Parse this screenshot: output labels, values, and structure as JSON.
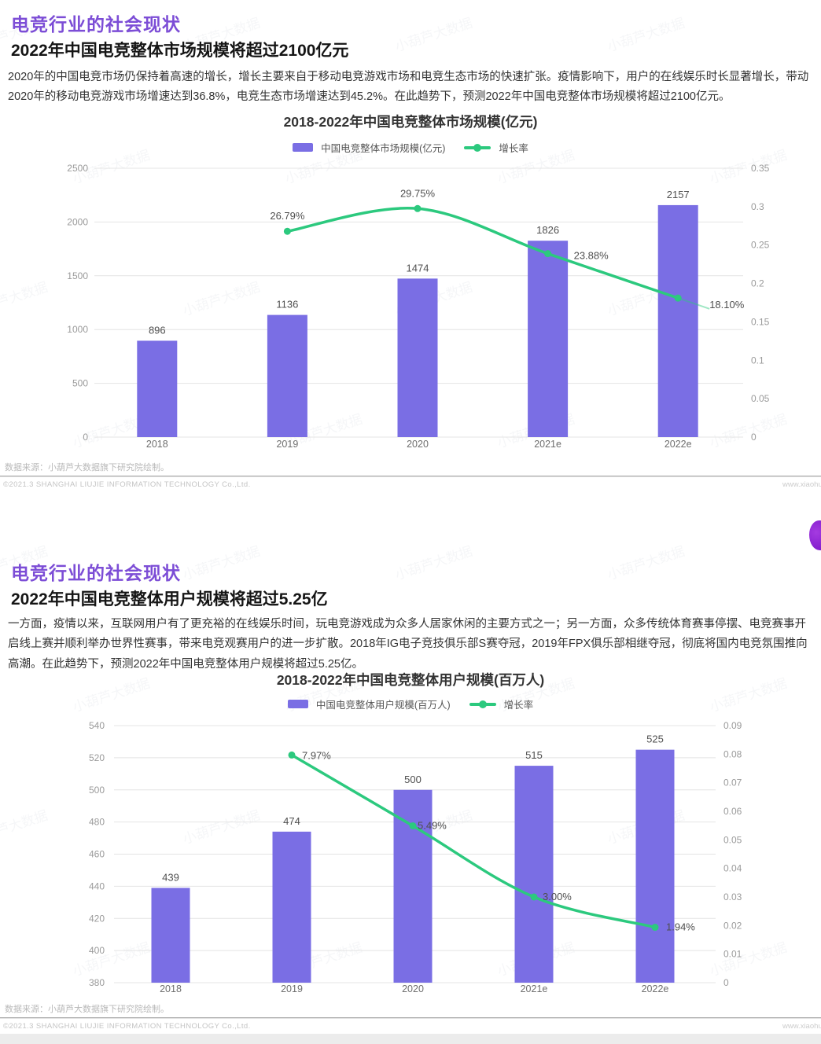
{
  "page": {
    "watermark_text": "小葫芦大数据"
  },
  "colors": {
    "heading_purple": "#7c4dd6",
    "bar": "#7a6ee4",
    "line": "#2cc97e",
    "grid": "#e4e4e4",
    "axis_text": "#9a9a9a",
    "value_text": "#4f4f4f",
    "category_text": "#6e6e6e"
  },
  "slides": [
    {
      "heading": "电竞行业的社会现状",
      "subtitle": "2022年中国电竞整体市场规模将超过2100亿元",
      "body": "2020年的中国电竞市场仍保持着高速的增长，增长主要来自于移动电竞游戏市场和电竞生态市场的快速扩张。疫情影响下，用户的在线娱乐时长显著增长，带动2020年的移动电竞游戏市场增速达到36.8%，电竞生态市场增速达到45.2%。在此趋势下，预测2022年中国电竞整体市场规模将超过2100亿元。",
      "source_note": "数据来源：小葫芦大数据旗下研究院绘制。",
      "copyright": "©2021.3 SHANGHAI LIUJIE INFORMATION TECHNOLOGY Co.,Ltd.",
      "website": "www.xiaohu"
    },
    {
      "heading": "电竞行业的社会现状",
      "subtitle": "2022年中国电竞整体用户规模将超过5.25亿",
      "body": "一方面，疫情以来，互联网用户有了更充裕的在线娱乐时间，玩电竞游戏成为众多人居家休闲的主要方式之一；另一方面，众多传统体育赛事停摆、电竞赛事开启线上赛并顺利举办世界性赛事，带来电竞观赛用户的进一步扩散。2018年IG电子竞技俱乐部S赛夺冠，2019年FPX俱乐部相继夺冠，彻底将国内电竞氛围推向高潮。在此趋势下，预测2022年中国电竞整体用户规模将超过5.25亿。",
      "source_note": "数据来源：小葫芦大数据旗下研究院绘制。",
      "copyright": "©2021.3 SHANGHAI LIUJIE INFORMATION TECHNOLOGY Co.,Ltd.",
      "website": "www.xiaohu"
    }
  ],
  "chart_data": [
    {
      "type": "bar",
      "combo": "bar+line",
      "title": "2018-2022年中国电竞整体市场规模(亿元)",
      "categories": [
        "2018",
        "2019",
        "2020",
        "2021e",
        "2022e"
      ],
      "series": [
        {
          "name": "中国电竞整体市场规模(亿元)",
          "type": "bar",
          "values": [
            896,
            1136,
            1474,
            1826,
            2157
          ]
        },
        {
          "name": "增长率",
          "type": "line",
          "values": [
            null,
            26.79,
            29.75,
            23.88,
            18.1
          ],
          "labels": [
            "",
            "26.79%",
            "29.75%",
            "23.88%",
            "18.10%"
          ]
        }
      ],
      "left_axis": {
        "min": 0,
        "max": 2500,
        "step": 500
      },
      "right_axis": {
        "min": 0,
        "max": 0.35,
        "ticks": [
          "0",
          "0.05",
          "0.1",
          "0.15",
          "0.2",
          "0.25",
          "0.3",
          "0.35"
        ]
      },
      "grid": true,
      "legend_position": "top-center"
    },
    {
      "type": "bar",
      "combo": "bar+line",
      "title": "2018-2022年中国电竞整体用户规模(百万人)",
      "categories": [
        "2018",
        "2019",
        "2020",
        "2021e",
        "2022e"
      ],
      "series": [
        {
          "name": "中国电竞整体用户规模(百万人)",
          "type": "bar",
          "values": [
            439,
            474,
            500,
            515,
            525
          ]
        },
        {
          "name": "增长率",
          "type": "line",
          "values": [
            null,
            7.97,
            5.49,
            3.0,
            1.94
          ],
          "labels": [
            "",
            "7.97%",
            "5.49%",
            "3.00%",
            "1.94%"
          ]
        }
      ],
      "left_axis": {
        "min": 380,
        "max": 540,
        "step": 20
      },
      "right_axis": {
        "min": 0,
        "max": 0.09,
        "ticks": [
          "0",
          "0.01",
          "0.02",
          "0.03",
          "0.04",
          "0.05",
          "0.06",
          "0.07",
          "0.08",
          "0.09"
        ]
      },
      "grid": true,
      "legend_position": "top-center"
    }
  ]
}
